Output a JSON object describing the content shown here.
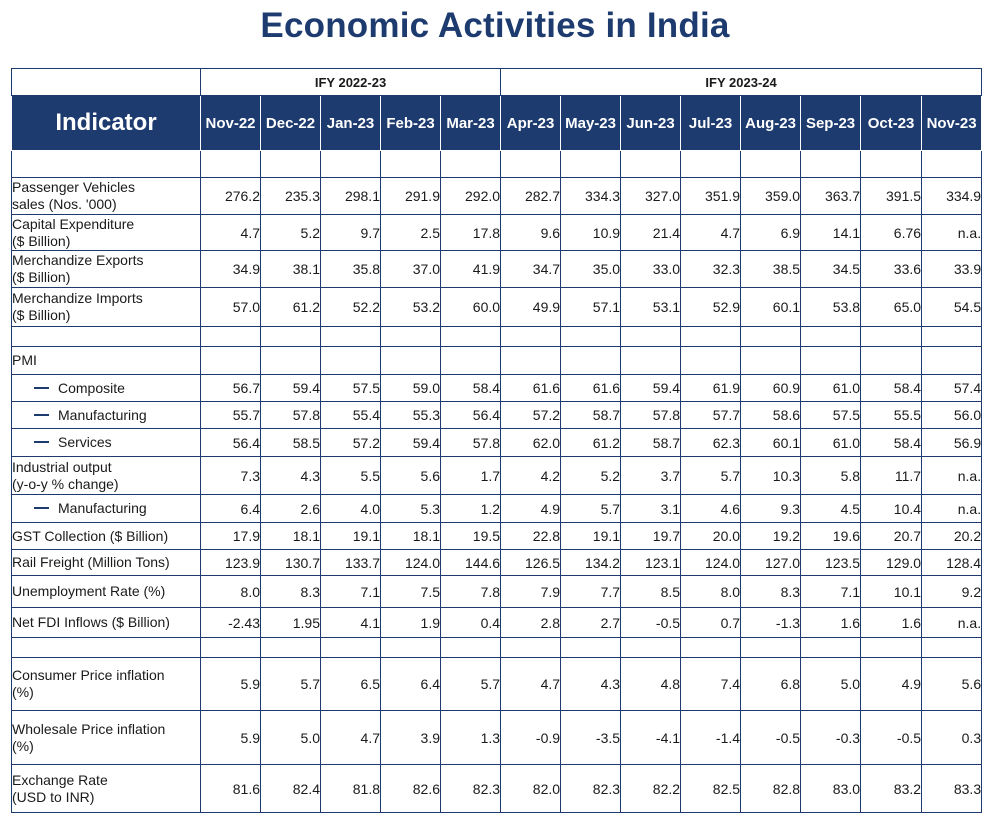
{
  "title": "Economic Activities in India",
  "colors": {
    "header_bg": "#1d3b6e",
    "header_text": "#ffffff",
    "border": "#1d3b6e"
  },
  "chart_data": {
    "type": "table",
    "fiscal_years": [
      "IFY 2022-23",
      "IFY 2023-24"
    ],
    "indicator_header": "Indicator",
    "columns": [
      "Nov-22",
      "Dec-22",
      "Jan-23",
      "Feb-23",
      "Mar-23",
      "Apr-23",
      "May-23",
      "Jun-23",
      "Jul-23",
      "Aug-23",
      "Sep-23",
      "Oct-23",
      "Nov-23"
    ],
    "rows": [
      {
        "label": "",
        "values": [
          "",
          "",
          "",
          "",
          "",
          "",
          "",
          "",
          "",
          "",
          "",
          "",
          ""
        ]
      },
      {
        "label": "Passenger Vehicles\nsales (Nos. '000)",
        "values": [
          "276.2",
          "235.3",
          "298.1",
          "291.9",
          "292.0",
          "282.7",
          "334.3",
          "327.0",
          "351.9",
          "359.0",
          "363.7",
          "391.5",
          "334.9"
        ]
      },
      {
        "label": "Capital Expenditure\n($ Billion)",
        "values": [
          "4.7",
          "5.2",
          "9.7",
          "2.5",
          "17.8",
          "9.6",
          "10.9",
          "21.4",
          "4.7",
          "6.9",
          "14.1",
          "6.76",
          "n.a."
        ]
      },
      {
        "label": "Merchandize Exports\n($ Billion)",
        "values": [
          "34.9",
          "38.1",
          "35.8",
          "37.0",
          "41.9",
          "34.7",
          "35.0",
          "33.0",
          "32.3",
          "38.5",
          "34.5",
          "33.6",
          "33.9"
        ]
      },
      {
        "label": "Merchandize Imports\n($ Billion)",
        "values": [
          "57.0",
          "61.2",
          "52.2",
          "53.2",
          "60.0",
          "49.9",
          "57.1",
          "53.1",
          "52.9",
          "60.1",
          "53.8",
          "65.0",
          "54.5"
        ]
      },
      {
        "label": "",
        "values": [
          "",
          "",
          "",
          "",
          "",
          "",
          "",
          "",
          "",
          "",
          "",
          "",
          ""
        ]
      },
      {
        "label": "PMI",
        "values": [
          "",
          "",
          "",
          "",
          "",
          "",
          "",
          "",
          "",
          "",
          "",
          "",
          ""
        ]
      },
      {
        "label": "Composite",
        "sub": true,
        "values": [
          "56.7",
          "59.4",
          "57.5",
          "59.0",
          "58.4",
          "61.6",
          "61.6",
          "59.4",
          "61.9",
          "60.9",
          "61.0",
          "58.4",
          "57.4"
        ]
      },
      {
        "label": "Manufacturing",
        "sub": true,
        "values": [
          "55.7",
          "57.8",
          "55.4",
          "55.3",
          "56.4",
          "57.2",
          "58.7",
          "57.8",
          "57.7",
          "58.6",
          "57.5",
          "55.5",
          "56.0"
        ]
      },
      {
        "label": "Services",
        "sub": true,
        "values": [
          "56.4",
          "58.5",
          "57.2",
          "59.4",
          "57.8",
          "62.0",
          "61.2",
          "58.7",
          "62.3",
          "60.1",
          "61.0",
          "58.4",
          "56.9"
        ]
      },
      {
        "label": "Industrial output\n(y-o-y % change)",
        "values": [
          "7.3",
          "4.3",
          "5.5",
          "5.6",
          "1.7",
          "4.2",
          "5.2",
          "3.7",
          "5.7",
          "10.3",
          "5.8",
          "11.7",
          "n.a."
        ]
      },
      {
        "label": "Manufacturing",
        "sub": true,
        "values": [
          "6.4",
          "2.6",
          "4.0",
          "5.3",
          "1.2",
          "4.9",
          "5.7",
          "3.1",
          "4.6",
          "9.3",
          "4.5",
          "10.4",
          "n.a."
        ]
      },
      {
        "label": "GST Collection ($ Billion)",
        "values": [
          "17.9",
          "18.1",
          "19.1",
          "18.1",
          "19.5",
          "22.8",
          "19.1",
          "19.7",
          "20.0",
          "19.2",
          "19.6",
          "20.7",
          "20.2"
        ]
      },
      {
        "label": "Rail Freight (Million Tons)",
        "values": [
          "123.9",
          "130.7",
          "133.7",
          "124.0",
          "144.6",
          "126.5",
          "134.2",
          "123.1",
          "124.0",
          "127.0",
          "123.5",
          "129.0",
          "128.4"
        ]
      },
      {
        "label": "Unemployment Rate (%)",
        "values": [
          "8.0",
          "8.3",
          "7.1",
          "7.5",
          "7.8",
          "7.9",
          "7.7",
          "8.5",
          "8.0",
          "8.3",
          "7.1",
          "10.1",
          "9.2"
        ]
      },
      {
        "label": "Net FDI Inflows ($ Billion)",
        "values": [
          "-2.43",
          "1.95",
          "4.1",
          "1.9",
          "0.4",
          "2.8",
          "2.7",
          "-0.5",
          "0.7",
          "-1.3",
          "1.6",
          "1.6",
          "n.a."
        ]
      },
      {
        "label": "",
        "values": [
          "",
          "",
          "",
          "",
          "",
          "",
          "",
          "",
          "",
          "",
          "",
          "",
          ""
        ]
      },
      {
        "label": "Consumer Price inflation\n(%)",
        "values": [
          "5.9",
          "5.7",
          "6.5",
          "6.4",
          "5.7",
          "4.7",
          "4.3",
          "4.8",
          "7.4",
          "6.8",
          "5.0",
          "4.9",
          "5.6"
        ]
      },
      {
        "label": "Wholesale Price inflation\n(%)",
        "values": [
          "5.9",
          "5.0",
          "4.7",
          "3.9",
          "1.3",
          "-0.9",
          "-3.5",
          "-4.1",
          "-1.4",
          "-0.5",
          "-0.3",
          "-0.5",
          "0.3"
        ]
      },
      {
        "label": "Exchange Rate\n(USD to INR)",
        "values": [
          "81.6",
          "82.4",
          "81.8",
          "82.6",
          "82.3",
          "82.0",
          "82.3",
          "82.2",
          "82.5",
          "82.8",
          "83.0",
          "83.2",
          "83.3"
        ]
      }
    ]
  }
}
